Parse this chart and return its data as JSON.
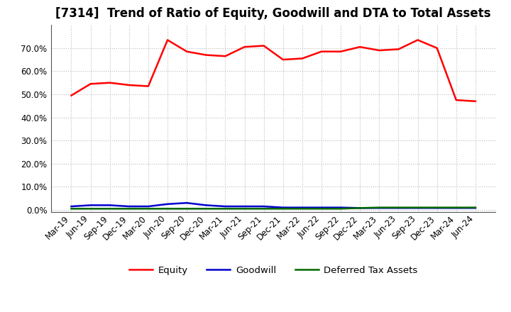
{
  "title": "[7314]  Trend of Ratio of Equity, Goodwill and DTA to Total Assets",
  "x_labels": [
    "Mar-19",
    "Jun-19",
    "Sep-19",
    "Dec-19",
    "Mar-20",
    "Jun-20",
    "Sep-20",
    "Dec-20",
    "Mar-21",
    "Jun-21",
    "Sep-21",
    "Dec-21",
    "Mar-22",
    "Jun-22",
    "Sep-22",
    "Dec-22",
    "Mar-23",
    "Jun-23",
    "Sep-23",
    "Dec-23",
    "Mar-24",
    "Jun-24"
  ],
  "equity": [
    49.5,
    54.5,
    55.0,
    54.0,
    53.5,
    73.5,
    68.5,
    67.0,
    66.5,
    70.5,
    71.0,
    65.0,
    65.5,
    68.5,
    68.5,
    70.5,
    69.0,
    69.5,
    73.5,
    70.0,
    47.5,
    47.0
  ],
  "goodwill": [
    1.5,
    2.0,
    2.0,
    1.5,
    1.5,
    2.5,
    3.0,
    2.0,
    1.5,
    1.5,
    1.5,
    1.0,
    1.0,
    1.0,
    1.0,
    0.8,
    0.8,
    0.8,
    0.8,
    0.8,
    0.8,
    0.8
  ],
  "dta": [
    0.5,
    0.5,
    0.5,
    0.5,
    0.5,
    0.5,
    0.5,
    0.5,
    0.5,
    0.5,
    0.5,
    0.5,
    0.5,
    0.5,
    0.5,
    0.8,
    1.0,
    1.0,
    1.0,
    1.0,
    1.0,
    1.0
  ],
  "equity_color": "#FF0000",
  "goodwill_color": "#0000CC",
  "dta_color": "#006600",
  "background_color": "#FFFFFF",
  "plot_bg_color": "#FFFFFF",
  "grid_color": "#BBBBBB",
  "ylim": [
    -1,
    80
  ],
  "yticks": [
    0,
    10,
    20,
    30,
    40,
    50,
    60,
    70
  ],
  "title_fontsize": 12,
  "tick_fontsize": 8.5,
  "legend_fontsize": 9.5
}
